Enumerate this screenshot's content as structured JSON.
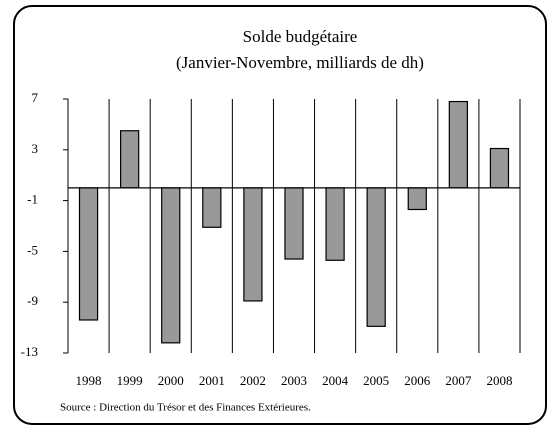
{
  "chart_data": {
    "type": "bar",
    "title": "Solde budgétaire",
    "subtitle": "(Janvier-Novembre, milliards de dh)",
    "source": "Source : Direction du Trésor et des Finances Extérieures.",
    "categories": [
      "1998",
      "1999",
      "2000",
      "2001",
      "2002",
      "2003",
      "2004",
      "2005",
      "2006",
      "2007",
      "2008"
    ],
    "values": [
      -10.4,
      4.5,
      -12.2,
      -3.1,
      -8.9,
      -5.6,
      -5.7,
      -10.9,
      -1.7,
      6.8,
      3.1
    ],
    "color": "#999999",
    "ylim": [
      -13,
      7
    ],
    "yticks": [
      7,
      3,
      -1,
      -5,
      -9,
      -13
    ],
    "grid": false
  }
}
